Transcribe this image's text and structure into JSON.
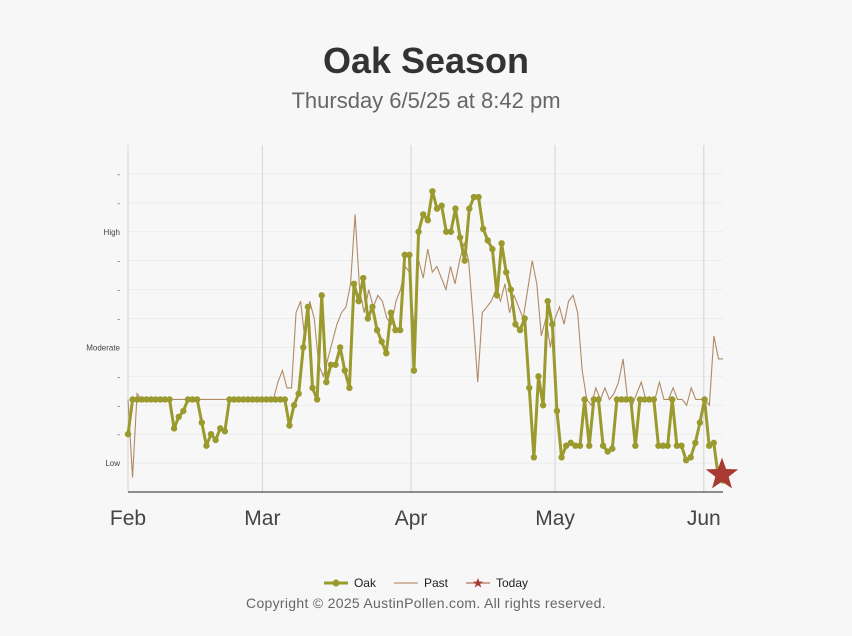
{
  "chart_data": {
    "type": "line",
    "title": "Oak Season",
    "subtitle": "Thursday 6/5/25 at 8:42 pm",
    "x_range": [
      "2025-02-01",
      "2025-06-05"
    ],
    "x_ticks": [
      "Feb",
      "Mar",
      "Apr",
      "May",
      "Jun"
    ],
    "y_ticks": [
      "",
      "Low",
      "",
      "",
      "",
      "Moderate",
      "",
      "",
      "",
      "High",
      "",
      ""
    ],
    "grid": true,
    "legend": "bottom-center",
    "series": [
      {
        "name": "Oak",
        "color": "#9a9a2e",
        "values": [
          1.0,
          1.6,
          1.6,
          1.6,
          1.6,
          1.6,
          1.6,
          1.6,
          1.6,
          1.6,
          1.1,
          1.3,
          1.4,
          1.6,
          1.6,
          1.6,
          1.2,
          0.8,
          1.0,
          0.9,
          1.1,
          1.05,
          1.6,
          1.6,
          1.6,
          1.6,
          1.6,
          1.6,
          1.6,
          1.6,
          1.6,
          1.6,
          1.6,
          1.6,
          1.6,
          1.15,
          1.5,
          1.7,
          2.5,
          3.2,
          1.8,
          1.6,
          3.4,
          1.9,
          2.2,
          2.2,
          2.5,
          2.1,
          1.8,
          3.6,
          3.3,
          3.7,
          3.0,
          3.2,
          2.8,
          2.6,
          2.4,
          3.1,
          2.8,
          2.8,
          4.1,
          4.1,
          2.1,
          4.5,
          4.8,
          4.7,
          5.2,
          4.9,
          4.95,
          4.5,
          4.5,
          4.9,
          4.4,
          4.0,
          4.9,
          5.1,
          5.1,
          4.55,
          4.35,
          4.2,
          3.4,
          4.3,
          3.8,
          3.5,
          2.9,
          2.8,
          3.0,
          1.8,
          0.6,
          2.0,
          1.5,
          3.3,
          2.9,
          1.4,
          0.6,
          0.8,
          0.85,
          0.8,
          0.8,
          1.6,
          0.8,
          1.6,
          1.6,
          0.8,
          0.7,
          0.75,
          1.6,
          1.6,
          1.6,
          1.6,
          0.8,
          1.6,
          1.6,
          1.6,
          1.6,
          0.8,
          0.8,
          0.8,
          1.6,
          0.8,
          0.8,
          0.55,
          0.6,
          0.85,
          1.2,
          1.6,
          0.8,
          0.85,
          0.25,
          0.2
        ]
      },
      {
        "name": "Past",
        "color": "#b08a66",
        "values": [
          1.6,
          0.25,
          1.7,
          1.6,
          1.6,
          1.6,
          1.6,
          1.6,
          1.6,
          1.6,
          1.6,
          1.6,
          1.6,
          1.6,
          1.6,
          1.6,
          1.6,
          1.6,
          1.6,
          1.6,
          1.6,
          1.6,
          1.6,
          1.6,
          1.6,
          1.6,
          1.6,
          1.6,
          1.6,
          1.6,
          1.6,
          1.6,
          1.6,
          1.9,
          2.1,
          1.8,
          1.8,
          3.1,
          3.3,
          2.6,
          3.3,
          3.0,
          2.2,
          2.0,
          2.3,
          2.6,
          2.9,
          3.1,
          3.2,
          3.6,
          4.8,
          3.5,
          3.1,
          3.5,
          3.2,
          3.4,
          3.3,
          3.0,
          2.9,
          3.3,
          3.5,
          3.9,
          3.8,
          2.8,
          4.0,
          3.7,
          4.2,
          3.8,
          3.9,
          3.7,
          3.5,
          3.9,
          3.6,
          4.0,
          4.3,
          4.0,
          3.0,
          1.9,
          3.1,
          3.2,
          3.3,
          3.5,
          3.3,
          3.6,
          3.1,
          3.4,
          3.2,
          3.0,
          3.5,
          4.0,
          3.6,
          2.7,
          3.0,
          2.5,
          3.0,
          3.2,
          2.9,
          3.3,
          3.4,
          3.1,
          2.1,
          1.6,
          1.5,
          1.8,
          1.6,
          1.8,
          1.6,
          1.7,
          1.9,
          2.3,
          1.6,
          1.5,
          1.7,
          1.9,
          1.6,
          1.6,
          1.6,
          1.9,
          1.6,
          1.6,
          1.8,
          1.6,
          1.6,
          1.5,
          1.8,
          1.6,
          1.6,
          1.6,
          1.5,
          2.7,
          2.3,
          2.3
        ]
      },
      {
        "name": "Today",
        "color": "#a83a32",
        "x": "2025-06-05",
        "value": 0.3
      }
    ]
  },
  "copyright": "Copyright © 2025 AustinPollen.com.  All rights reserved."
}
